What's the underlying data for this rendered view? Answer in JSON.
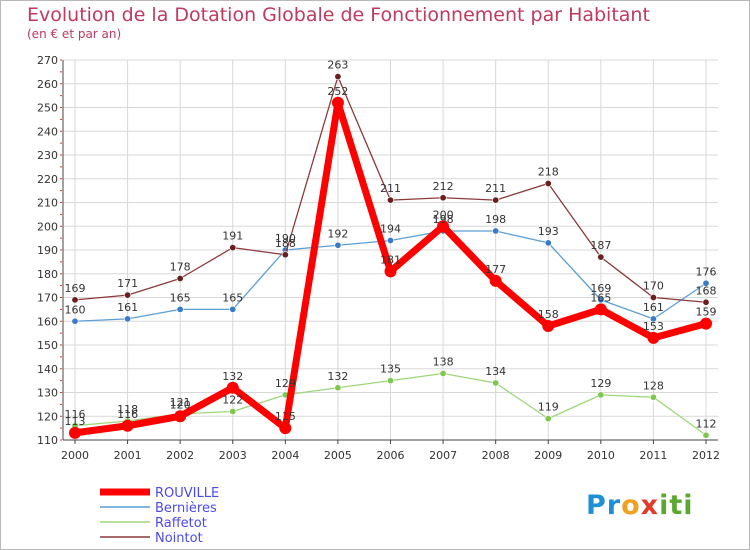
{
  "header": {
    "title": "Evolution de la Dotation Globale de Fonctionnement par Habitant",
    "subtitle": "(en € et par an)"
  },
  "logo": {
    "text": "Proxiti"
  },
  "colors": {
    "title": "#c0395f",
    "axis": "#444444",
    "grid": "#d8d8d8",
    "tick_dashes": "#e03030",
    "labels": "#333333"
  },
  "chart_data": {
    "type": "line",
    "title": "Evolution de la Dotation Globale de Fonctionnement par Habitant",
    "subtitle": "(en € et par an)",
    "xlabel": "",
    "ylabel": "",
    "ylim": [
      110,
      270
    ],
    "yticks": [
      110,
      120,
      130,
      140,
      150,
      160,
      170,
      180,
      190,
      200,
      210,
      220,
      230,
      240,
      250,
      260,
      270
    ],
    "grid": true,
    "legend_position": "bottom-left",
    "categories": [
      "2000",
      "2001",
      "2002",
      "2003",
      "2004",
      "2005",
      "2006",
      "2007",
      "2008",
      "2009",
      "2010",
      "2011",
      "2012"
    ],
    "series": [
      {
        "name": "ROUVILLE",
        "color": "#ff0000",
        "marker": "#ff0000",
        "legend_color": "#4a4af0",
        "values": [
          113,
          116,
          120,
          132,
          115,
          252,
          181,
          200,
          177,
          158,
          165,
          153,
          159
        ]
      },
      {
        "name": "Bernières",
        "color": "#5b9fd6",
        "marker": "#3a7bc8",
        "legend_color": "#4a4af0",
        "values": [
          160,
          161,
          165,
          165,
          190,
          192,
          194,
          198,
          198,
          193,
          169,
          161,
          176
        ]
      },
      {
        "name": "Raffetot",
        "color": "#9ed67a",
        "marker": "#7ec850",
        "legend_color": "#4a4af0",
        "values": [
          116,
          118,
          121,
          122,
          129,
          132,
          135,
          138,
          134,
          119,
          129,
          128,
          112
        ]
      },
      {
        "name": "Nointot",
        "color": "#8a3a3a",
        "marker": "#6a1e1e",
        "legend_color": "#4a4af0",
        "values": [
          169,
          171,
          178,
          191,
          188,
          263,
          211,
          212,
          211,
          218,
          187,
          170,
          168
        ]
      }
    ]
  }
}
